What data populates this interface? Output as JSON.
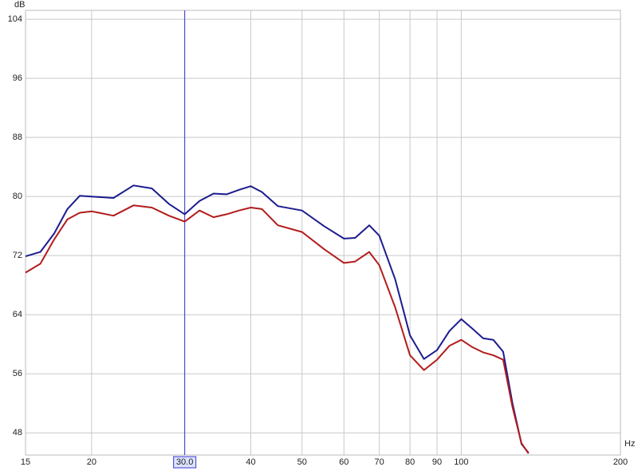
{
  "chart_data": {
    "type": "line",
    "x_label": "Hz",
    "y_label": "dB",
    "xscale": "log",
    "grid": true,
    "x": [
      15,
      16,
      17,
      18,
      19,
      20,
      22,
      24,
      26,
      28,
      30,
      32,
      34,
      36,
      38,
      40,
      42,
      45,
      50,
      55,
      60,
      63,
      67,
      70,
      75,
      80,
      85,
      90,
      95,
      100,
      105,
      110,
      115,
      120,
      125,
      130,
      134
    ],
    "series": [
      {
        "color": "#1c1c8e",
        "values": [
          71.9,
          72.5,
          75.0,
          78.3,
          80.1,
          80.0,
          79.8,
          81.5,
          81.1,
          79.0,
          77.6,
          79.4,
          80.4,
          80.3,
          80.9,
          81.4,
          80.6,
          78.7,
          78.1,
          76.0,
          74.3,
          74.4,
          76.1,
          74.7,
          68.8,
          61.2,
          58.0,
          59.2,
          61.8,
          63.4,
          62.1,
          60.8,
          60.6,
          59.0,
          52.0,
          46.5,
          45.3
        ]
      },
      {
        "color": "#b21c1c",
        "values": [
          69.7,
          70.9,
          74.2,
          76.9,
          77.8,
          78.0,
          77.4,
          78.8,
          78.5,
          77.4,
          76.6,
          78.1,
          77.2,
          77.6,
          78.1,
          78.5,
          78.3,
          76.1,
          75.2,
          72.9,
          71.0,
          71.2,
          72.5,
          70.7,
          65.0,
          58.5,
          56.5,
          57.9,
          59.8,
          60.6,
          59.6,
          58.9,
          58.5,
          57.9,
          51.5,
          46.6,
          45.2
        ]
      }
    ],
    "xlim": [
      15,
      200
    ],
    "ylim": [
      45,
      105.2
    ],
    "xticks": [
      15,
      20,
      30,
      40,
      50,
      60,
      70,
      80,
      90,
      100,
      200
    ],
    "yticks": [
      48,
      56,
      64,
      72,
      80,
      88,
      96,
      104
    ],
    "cursor": {
      "value": 30,
      "label": "30.0",
      "color": "#3a3acc"
    }
  }
}
